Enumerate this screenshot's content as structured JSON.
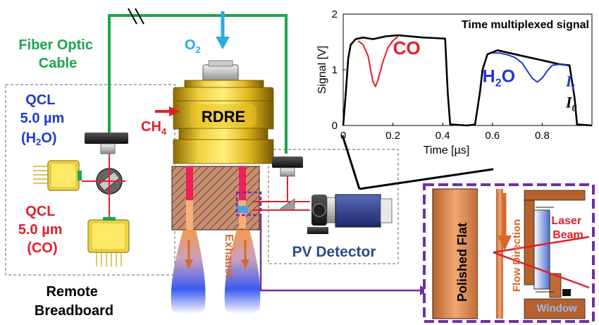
{
  "labels": {
    "fiber_optic_cable": [
      "Fiber Optic",
      "Cable"
    ],
    "qcl_h2o": [
      "QCL",
      "5.0 µm",
      "(H",
      "2",
      "O)"
    ],
    "qcl_co": [
      "QCL",
      "5.0 µm",
      "(CO)"
    ],
    "remote_breadboard": [
      "Remote",
      "Breadboard"
    ],
    "o2": [
      "O",
      "2"
    ],
    "ch4": [
      "CH",
      "4"
    ],
    "rdre": "RDRE",
    "exhaust": "Exhaust",
    "pv_detector": "PV Detector",
    "polished_flat": "Polished Flat",
    "flow_direction": "Flow Direction",
    "laser_beam": [
      "Laser",
      "Beam"
    ],
    "window": "Window"
  },
  "colors": {
    "fiber": "#1aa64a",
    "laser": "#e0202a",
    "o2_arrow": "#29abe2",
    "qcl_h2o": "#2137d6",
    "qcl_co": "#e0202a",
    "exhaust": "#d8682a",
    "purple": "#7030a0",
    "pv_text": "#2f4a8a",
    "gold": "#e8c020"
  },
  "chart_data": {
    "type": "line",
    "title": "Time multiplexed signal",
    "xlabel": "Time [µs]",
    "ylabel": "Signal [V]",
    "xlim": [
      0,
      1.0
    ],
    "ylim": [
      0,
      2
    ],
    "xticks": [
      0,
      0.2,
      0.4,
      0.6,
      0.8
    ],
    "yticks": [
      0,
      1,
      2
    ],
    "annotations": {
      "co": "CO",
      "h2o": [
        "H",
        "2",
        "O"
      ],
      "it": [
        "I",
        "t"
      ],
      "i0": [
        "I",
        "0"
      ]
    },
    "series": [
      {
        "name": "I0",
        "color": "#000000",
        "x": [
          0.0,
          0.01,
          0.02,
          0.03,
          0.05,
          0.08,
          0.12,
          0.17,
          0.22,
          0.27,
          0.32,
          0.37,
          0.41,
          0.42,
          0.43,
          0.5,
          0.53,
          0.55,
          0.56,
          0.58,
          0.62,
          0.67,
          0.72,
          0.77,
          0.82,
          0.87,
          0.91,
          0.93,
          0.94,
          1.0
        ],
        "y": [
          0.0,
          0.55,
          1.2,
          1.45,
          1.55,
          1.58,
          1.55,
          1.6,
          1.62,
          1.6,
          1.58,
          1.57,
          1.56,
          0.6,
          0.02,
          0.0,
          0.02,
          0.6,
          1.0,
          1.28,
          1.35,
          1.3,
          1.25,
          1.2,
          1.15,
          1.1,
          1.08,
          0.5,
          0.02,
          0.0
        ]
      },
      {
        "name": "CO",
        "color": "#e0202a",
        "x": [
          0.06,
          0.08,
          0.1,
          0.11,
          0.12,
          0.13,
          0.14,
          0.16,
          0.18,
          0.2,
          0.22
        ],
        "y": [
          1.52,
          1.45,
          1.25,
          1.0,
          0.78,
          0.7,
          0.82,
          1.15,
          1.4,
          1.52,
          1.6
        ]
      },
      {
        "name": "H2O",
        "color": "#2137d6",
        "x": [
          0.6,
          0.63,
          0.66,
          0.69,
          0.72,
          0.74,
          0.76,
          0.78,
          0.8,
          0.82,
          0.84,
          0.87,
          0.9
        ],
        "y": [
          1.3,
          1.3,
          1.27,
          1.22,
          1.12,
          0.98,
          0.85,
          0.78,
          0.85,
          0.98,
          1.08,
          1.1,
          1.08
        ]
      }
    ]
  }
}
